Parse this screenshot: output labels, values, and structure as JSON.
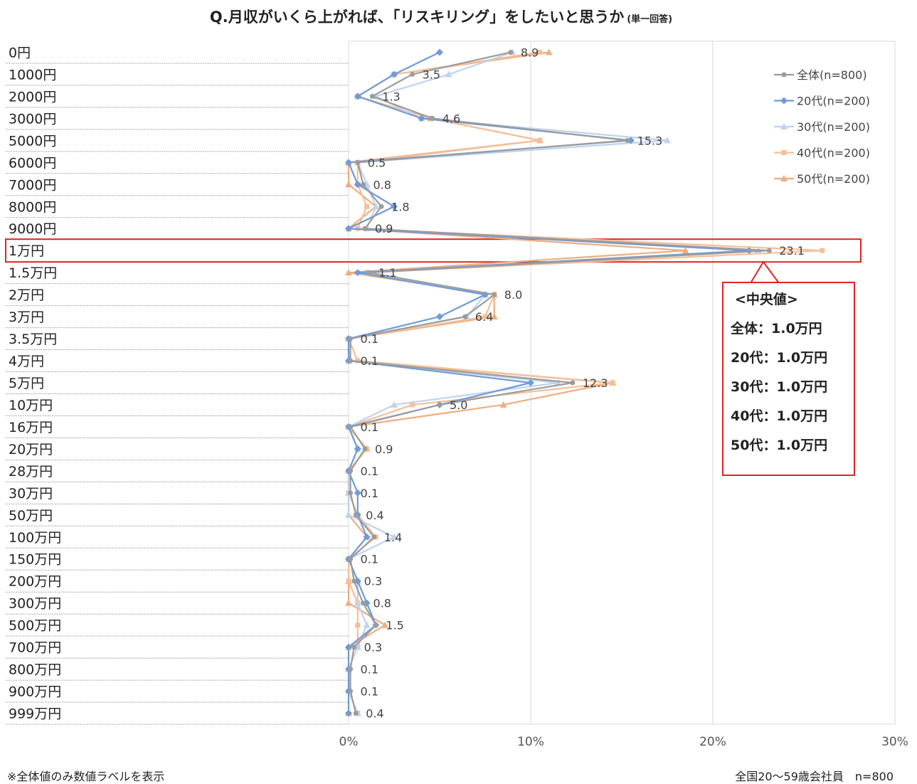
{
  "title": "Q.月収がいくら上がれば、「リスキリング」をしたいと思うか",
  "subtitle": "(単一回答)",
  "footnote_left": "※全体値のみ数値ラベルを表示",
  "footnote_right": "全国20～59歳会社員　n=800",
  "median_box": {
    "title": "<中央値>",
    "rows": [
      "全体：1.0万円",
      "20代：1.0万円",
      "30代：1.0万円",
      "40代：1.0万円",
      "50代：1.0万円"
    ]
  },
  "highlight_category": "1万円",
  "chart_data": {
    "type": "line",
    "orientation": "horizontal",
    "categories": [
      "0円",
      "1000円",
      "2000円",
      "3000円",
      "5000円",
      "6000円",
      "7000円",
      "8000円",
      "9000円",
      "1万円",
      "1.5万円",
      "2万円",
      "3万円",
      "3.5万円",
      "4万円",
      "5万円",
      "10万円",
      "16万円",
      "20万円",
      "28万円",
      "30万円",
      "50万円",
      "100万円",
      "150万円",
      "200万円",
      "300万円",
      "500万円",
      "700万円",
      "800万円",
      "900万円",
      "999万円"
    ],
    "xlim": [
      0,
      30
    ],
    "xticks": [
      "0%",
      "10%",
      "20%",
      "30%"
    ],
    "grid": "vertical",
    "legend": "top-right",
    "series": [
      {
        "name": "全体(n=800)",
        "color": "#9c9c9c",
        "marker": "circle",
        "labels": true,
        "values": [
          8.9,
          3.5,
          1.3,
          4.6,
          15.3,
          0.5,
          0.8,
          1.8,
          0.9,
          23.1,
          1.1,
          8.0,
          6.4,
          0.1,
          0.1,
          12.3,
          5.0,
          0.1,
          0.9,
          0.1,
          0.1,
          0.4,
          1.4,
          0.1,
          0.3,
          0.8,
          1.5,
          0.3,
          0.1,
          0.1,
          0.4
        ]
      },
      {
        "name": "20代(n=200)",
        "color": "#6f9bd8",
        "marker": "diamond",
        "values": [
          5.0,
          2.5,
          0.5,
          4.0,
          15.5,
          0.0,
          0.5,
          2.5,
          0.0,
          22.0,
          0.5,
          7.5,
          5.0,
          0.0,
          0.0,
          10.0,
          5.0,
          0.0,
          0.5,
          0.0,
          0.5,
          0.5,
          1.0,
          0.0,
          0.5,
          1.0,
          1.5,
          0.0,
          0.0,
          0.0,
          0.0
        ]
      },
      {
        "name": "30代(n=200)",
        "color": "#bed3ee",
        "marker": "triangle",
        "values": [
          9.0,
          5.5,
          1.5,
          4.0,
          17.5,
          0.5,
          1.0,
          1.5,
          1.0,
          22.5,
          1.0,
          7.5,
          6.5,
          0.0,
          0.0,
          11.5,
          2.5,
          0.0,
          0.5,
          0.0,
          0.0,
          0.0,
          2.5,
          0.0,
          0.5,
          0.5,
          1.0,
          0.5,
          0.0,
          0.0,
          0.5
        ]
      },
      {
        "name": "40代(n=200)",
        "color": "#f6bf97",
        "marker": "square",
        "values": [
          10.5,
          2.5,
          0.5,
          4.5,
          10.5,
          0.5,
          0.5,
          1.0,
          0.5,
          26.0,
          1.0,
          8.0,
          7.5,
          0.0,
          0.5,
          14.5,
          3.5,
          0.0,
          1.0,
          0.0,
          0.0,
          0.5,
          1.5,
          0.0,
          0.0,
          0.5,
          0.5,
          0.5,
          0.0,
          0.0,
          0.5
        ]
      },
      {
        "name": "50代(n=200)",
        "color": "#f0ad7e",
        "marker": "triangle",
        "values": [
          11.0,
          2.5,
          0.5,
          4.5,
          10.5,
          0.0,
          0.0,
          1.5,
          0.0,
          18.5,
          0.0,
          8.0,
          8.0,
          0.0,
          0.0,
          14.5,
          8.5,
          0.0,
          1.0,
          0.0,
          0.0,
          0.0,
          1.0,
          0.0,
          0.0,
          0.0,
          2.0,
          0.0,
          0.0,
          0.0,
          0.0
        ]
      }
    ]
  }
}
